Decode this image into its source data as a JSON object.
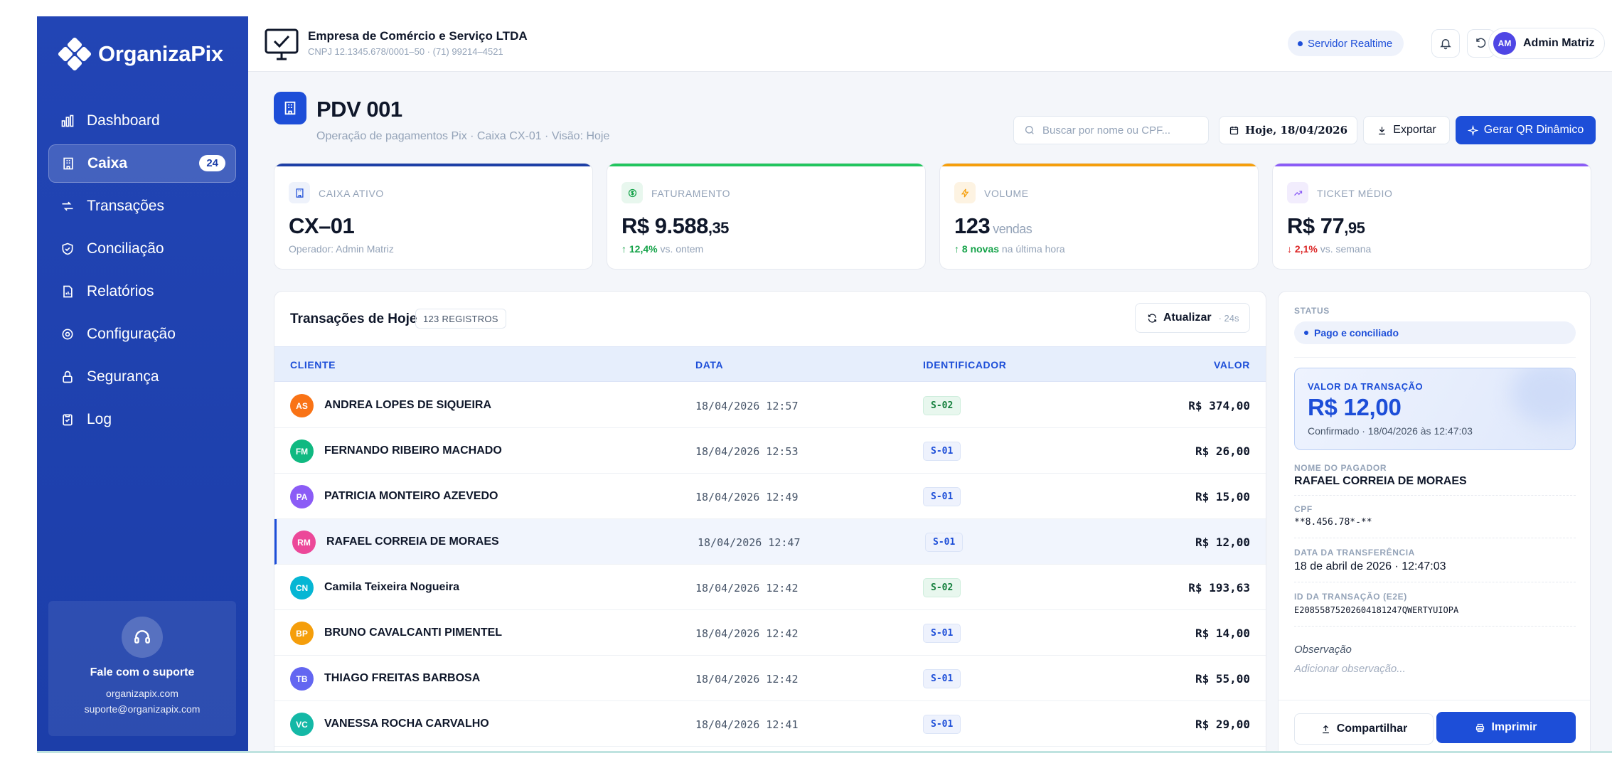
{
  "brand": {
    "name": "OrganizaPix"
  },
  "sidebar": {
    "items": [
      {
        "label": "Dashboard",
        "icon": "chart-bar-icon"
      },
      {
        "label": "Caixa",
        "icon": "building-icon",
        "badge": "24",
        "active": true
      },
      {
        "label": "Transações",
        "icon": "transfer-icon"
      },
      {
        "label": "Conciliação",
        "icon": "shield-check-icon"
      },
      {
        "label": "Relatórios",
        "icon": "report-icon"
      },
      {
        "label": "Configuração",
        "icon": "gear-icon"
      },
      {
        "label": "Segurança",
        "icon": "lock-icon"
      },
      {
        "label": "Log",
        "icon": "clipboard-icon"
      }
    ],
    "support": {
      "title": "Fale com o suporte",
      "site": "organizapix.com",
      "email": "suporte@organizapix.com"
    }
  },
  "topbar": {
    "company": "Empresa de Comércio e Serviço LTDA",
    "company_sub": "CNPJ 12.1345.678/0001–50 · (71) 99214–4521",
    "realtime": "Servidor Realtime",
    "user_initials": "AM",
    "user_name": "Admin Matriz"
  },
  "header": {
    "title": "PDV 001",
    "subtitle": "Operação de pagamentos Pix · Caixa CX-01 · Visão: Hoje",
    "search_placeholder": "Buscar por nome ou CPF...",
    "date_label": "Hoje, 18/04/2026",
    "export_label": "Exportar",
    "qr_label": "Gerar QR Dinâmico"
  },
  "stats": {
    "caixa": {
      "label": "CAIXA ATIVO",
      "value": "CX–01",
      "foot": "Operador: Admin Matriz"
    },
    "faturamento": {
      "label": "FATURAMENTO",
      "value_main": "R$ 9.588",
      "value_cents": ",35",
      "delta": "↑ 12,4%",
      "foot": "vs. ontem"
    },
    "volume": {
      "label": "VOLUME",
      "value": "123",
      "unit": "vendas",
      "delta": "↑ 8 novas",
      "foot": "na última hora"
    },
    "ticket": {
      "label": "TICKET MÉDIO",
      "value_main": "R$ 77",
      "value_cents": ",95",
      "delta": "↓ 2,1%",
      "foot": "vs. semana"
    }
  },
  "colors": {
    "primary": "#1d4ed8",
    "caixa_bar": "#1d3fa6",
    "faturamento_bar": "#22c55e",
    "volume_bar": "#f59e0b",
    "ticket_bar": "#8b5cf6"
  },
  "table": {
    "title": "Transações de Hoje",
    "count": "123 REGISTROS",
    "refresh_label": "Atualizar",
    "refresh_seconds": "· 24s",
    "columns": {
      "cliente": "CLIENTE",
      "data": "DATA",
      "identificador": "IDENTIFICADOR",
      "valor": "VALOR"
    },
    "rows": [
      {
        "initials": "AS",
        "color": "#f97316",
        "name": "ANDREA LOPES DE SIQUEIRA",
        "date": "18/04/2026 12:57",
        "id": "S-02",
        "value": "R$ 374,00"
      },
      {
        "initials": "FM",
        "color": "#10b981",
        "name": "FERNANDO RIBEIRO MACHADO",
        "date": "18/04/2026 12:53",
        "id": "S-01",
        "value": "R$ 26,00"
      },
      {
        "initials": "PA",
        "color": "#8b5cf6",
        "name": "PATRICIA MONTEIRO AZEVEDO",
        "date": "18/04/2026 12:49",
        "id": "S-01",
        "value": "R$ 15,00"
      },
      {
        "initials": "RM",
        "color": "#ec4899",
        "name": "RAFAEL CORREIA DE MORAES",
        "date": "18/04/2026 12:47",
        "id": "S-01",
        "value": "R$ 12,00",
        "selected": true
      },
      {
        "initials": "CN",
        "color": "#06b6d4",
        "name": "Camila Teixeira Nogueira",
        "date": "18/04/2026 12:42",
        "id": "S-02",
        "value": "R$ 193,63"
      },
      {
        "initials": "BP",
        "color": "#f59e0b",
        "name": "BRUNO CAVALCANTI PIMENTEL",
        "date": "18/04/2026 12:42",
        "id": "S-01",
        "value": "R$ 14,00"
      },
      {
        "initials": "TB",
        "color": "#6366f1",
        "name": "THIAGO FREITAS BARBOSA",
        "date": "18/04/2026 12:42",
        "id": "S-01",
        "value": "R$ 55,00"
      },
      {
        "initials": "VC",
        "color": "#14b8a6",
        "name": "VANESSA ROCHA CARVALHO",
        "date": "18/04/2026 12:41",
        "id": "S-01",
        "value": "R$ 29,00"
      }
    ]
  },
  "detail": {
    "status_label": "STATUS",
    "status": "Pago e conciliado",
    "value_label": "VALOR DA TRANSAÇÃO",
    "value": "R$ 12,00",
    "confirmed": "Confirmado · 18/04/2026 às 12:47:03",
    "payer_label": "NOME DO PAGADOR",
    "payer": "RAFAEL CORREIA DE MORAES",
    "cpf_label": "CPF",
    "cpf": "**8.456.78*-**",
    "date_label": "DATA DA TRANSFERÊNCIA",
    "date": "18 de abril de 2026 · 12:47:03",
    "e2e_label": "ID DA TRANSAÇÃO (E2E)",
    "e2e": "E20855875202604181247QWERTYUIOPA",
    "obs_label": "Observação",
    "obs_placeholder": "Adicionar observação...",
    "share_label": "Compartilhar",
    "print_label": "Imprimir"
  }
}
